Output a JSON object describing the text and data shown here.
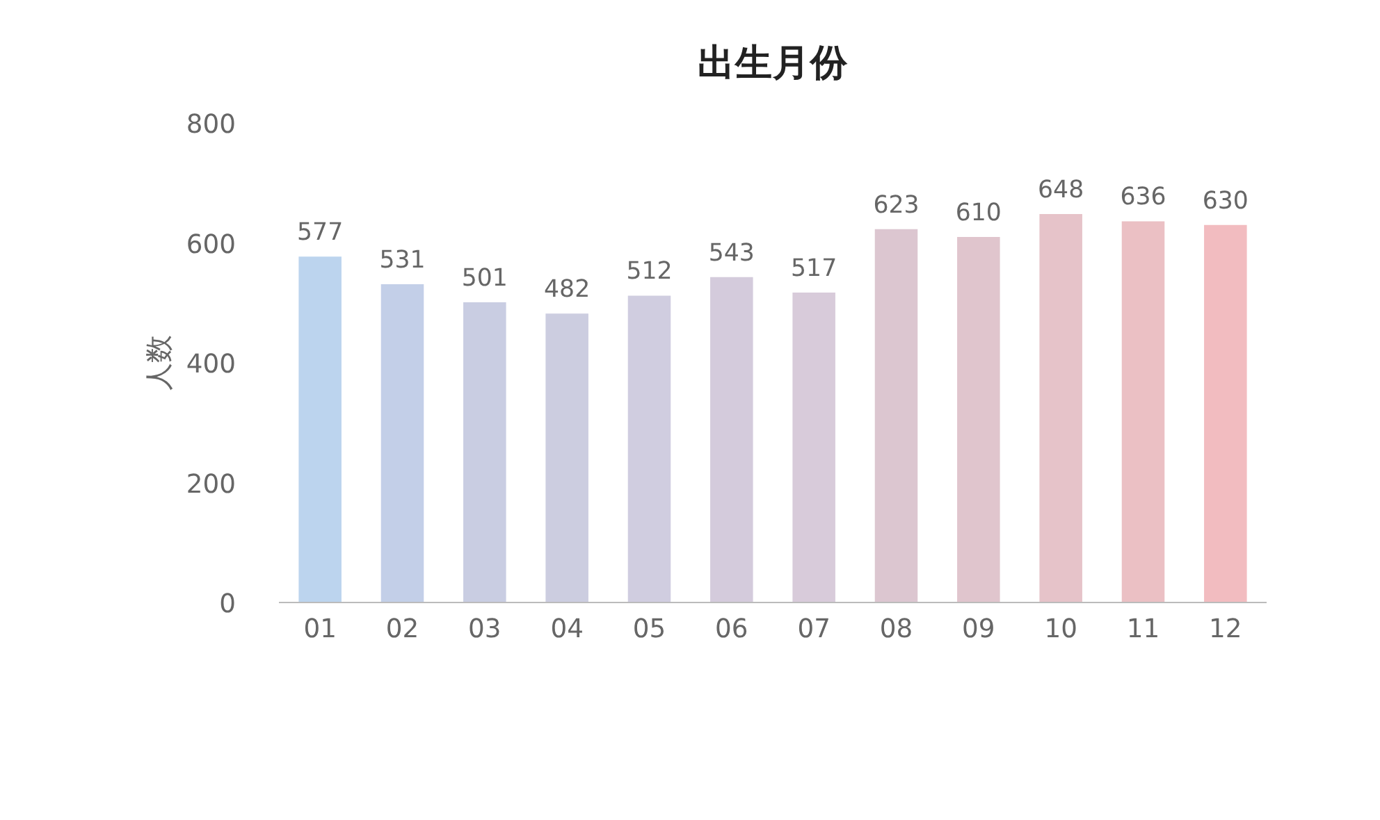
{
  "chart_data": {
    "type": "bar",
    "title": "出生月份",
    "ylabel": "人数",
    "categories": [
      "01",
      "02",
      "03",
      "04",
      "05",
      "06",
      "07",
      "08",
      "09",
      "10",
      "11",
      "12"
    ],
    "values": [
      577,
      531,
      501,
      482,
      512,
      543,
      517,
      623,
      610,
      648,
      636,
      630
    ],
    "colors": [
      "#bcd4ee",
      "#c3cfe8",
      "#c9cde2",
      "#cccde0",
      "#d0cde0",
      "#d4cbdc",
      "#d8cbda",
      "#dcc6d0",
      "#e0c5cd",
      "#e6c3c9",
      "#ebc0c4",
      "#f2bcc0"
    ],
    "ylim": [
      0,
      800
    ],
    "yticks": [
      0,
      200,
      400,
      600,
      800
    ],
    "data_labels": true
  }
}
